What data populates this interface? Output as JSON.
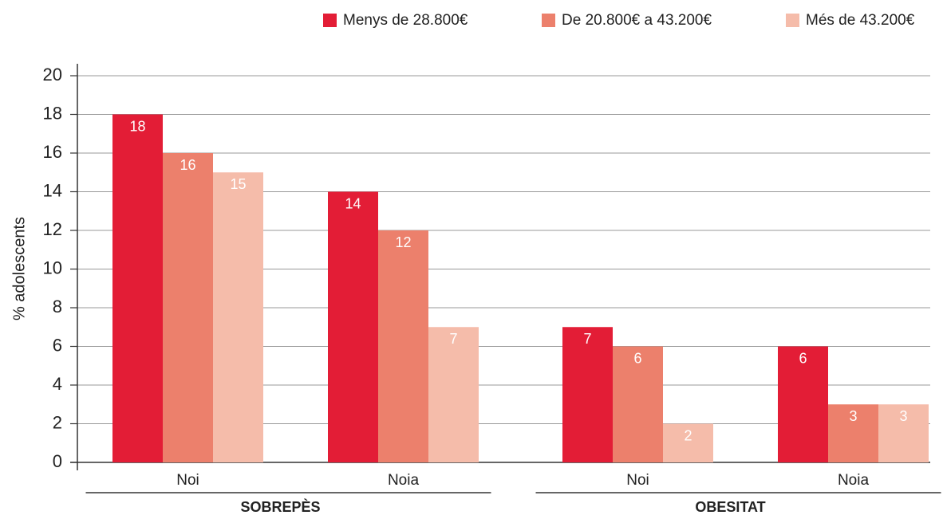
{
  "chart_data": {
    "type": "bar",
    "y_label": "% adolescents",
    "groups": [
      {
        "name": "SOBREPÈS",
        "categories": [
          "Noi",
          "Noia"
        ]
      },
      {
        "name": "OBESITAT",
        "categories": [
          "Noi",
          "Noia"
        ]
      }
    ],
    "series": [
      {
        "name": "Menys de 28.800€",
        "color": "#e31d36",
        "values": [
          18,
          14,
          7,
          6
        ]
      },
      {
        "name": "De 20.800€ a 43.200€",
        "color": "#ec806c",
        "values": [
          16,
          12,
          6,
          3
        ]
      },
      {
        "name": "Més de 43.200€",
        "color": "#f5bcaa",
        "values": [
          15,
          7,
          2,
          3
        ]
      }
    ],
    "ylim": [
      0,
      20
    ],
    "yticks": [
      0,
      2,
      4,
      6,
      8,
      10,
      12,
      14,
      16,
      18,
      20
    ],
    "grid": true,
    "legend": "top-right"
  }
}
